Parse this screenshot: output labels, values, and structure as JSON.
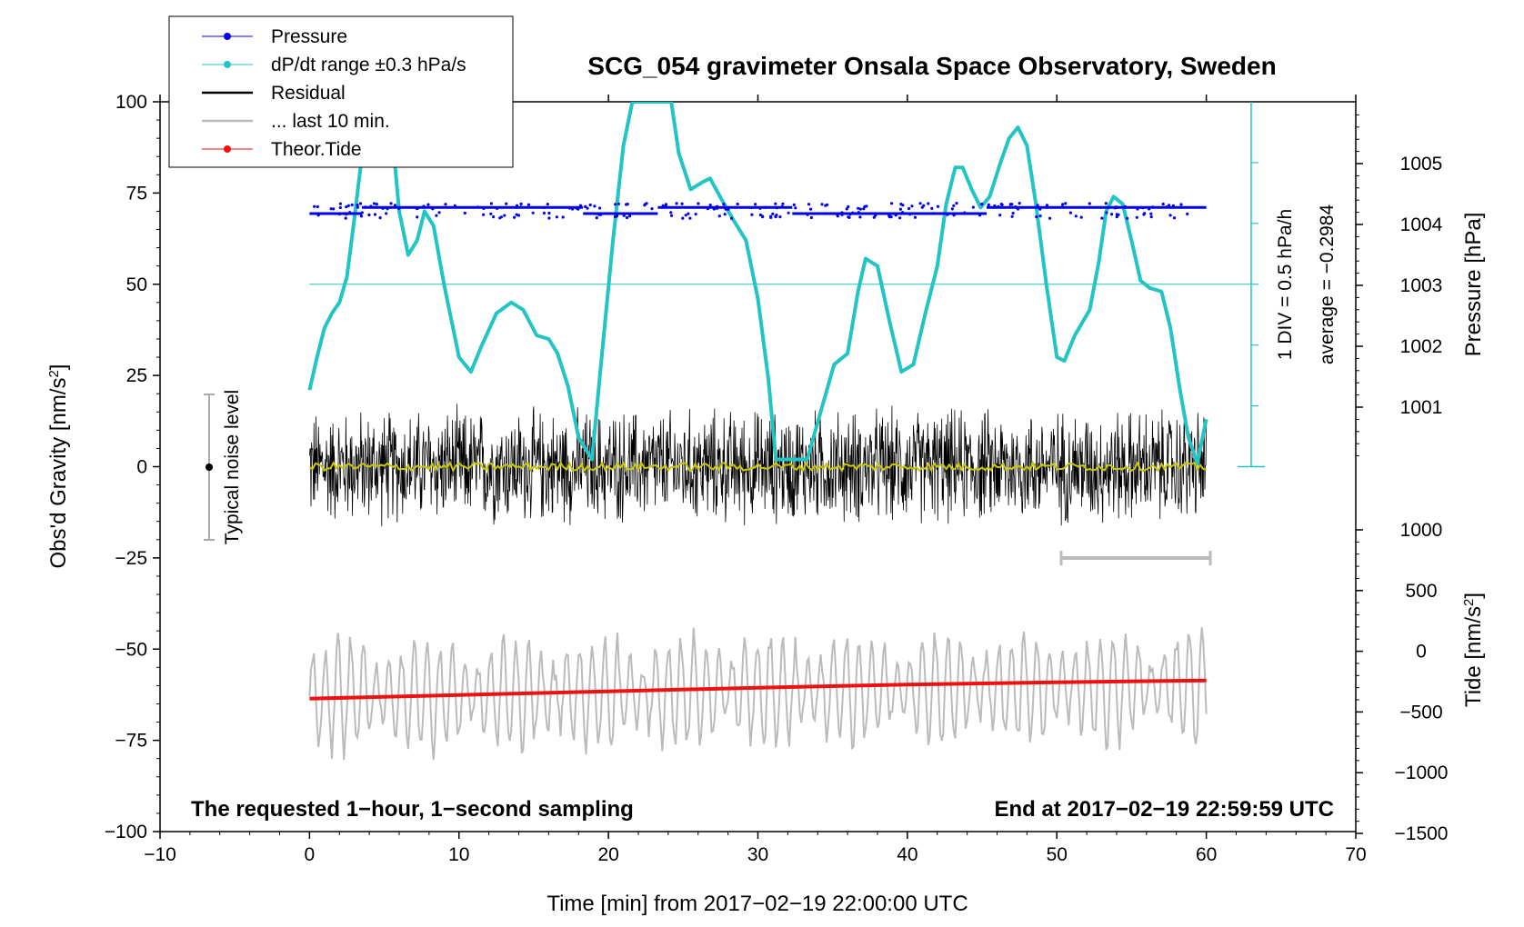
{
  "chart_data": {
    "type": "line",
    "title": "SCG_054 gravimeter Onsala Space Observatory, Sweden",
    "xlabel": "Time [min] from 2017−02−19 22:00:00 UTC",
    "xlim": [
      -10,
      70
    ],
    "xticks": [
      "−10",
      "0",
      "10",
      "20",
      "30",
      "40",
      "50",
      "60",
      "70"
    ],
    "y_left": {
      "label": "Obs'd Gravity [nm/s",
      "label_sup": "2",
      "label_end": "]",
      "lim": [
        -100,
        100
      ],
      "ticks": [
        "100",
        "75",
        "50",
        "25",
        "0",
        "−25",
        "−50",
        "−75",
        "−100"
      ]
    },
    "y_right_pressure": {
      "label": "Pressure [hPa]",
      "ticks": [
        "1005",
        "1004",
        "1003",
        "1002",
        "1001"
      ],
      "tick_values": [
        1005,
        1004,
        1003,
        1002,
        1001
      ]
    },
    "y_right_tide": {
      "label": "Tide [nm/s",
      "label_sup": "2",
      "label_end": "]",
      "ticks": [
        "1000",
        "500",
        "0",
        "−500",
        "−1000",
        "−1500"
      ],
      "tick_values": [
        1000,
        500,
        0,
        -500,
        -1000,
        -1500
      ]
    },
    "dpdt_scale_note": "1 DIV = 0.5 hPa/h",
    "dpdt_average": "average = −0.2984",
    "noise_label": "Typical noise level",
    "noise_bar": {
      "center": 0,
      "half_range": 20,
      "x_min": -7
    },
    "last10_bar": {
      "x_start": 50,
      "x_end": 60,
      "y": -25
    },
    "legend": [
      {
        "label": "Pressure",
        "color": "#0000ee",
        "marker": true
      },
      {
        "label": "dP/dt range ±0.3 hPa/s",
        "color": "#22c4c4",
        "marker": true
      },
      {
        "label": "Residual",
        "color": "#000000",
        "marker": false
      },
      {
        "label": "... last 10 min.",
        "color": "#bbbbbb",
        "marker": false
      },
      {
        "label": "Theor.Tide",
        "color": "#ee1111",
        "marker": true
      }
    ],
    "annotations": {
      "bottom_left": "The requested 1−hour, 1−second sampling",
      "bottom_right": "End at 2017−02−19 22:59:59 UTC"
    },
    "series": [
      {
        "name": "dP/dt range",
        "color": "#22c4c4",
        "y_units": "gravity-axis",
        "x": [
          0,
          0.5,
          1,
          1.5,
          2,
          2.5,
          3,
          3.5,
          4,
          4.3,
          4.8,
          5.2,
          5.6,
          6,
          6.6,
          7.2,
          7.7,
          8.3,
          9,
          10,
          10.8,
          11.5,
          12.5,
          13.5,
          14.3,
          15.2,
          16,
          16.6,
          17.3,
          18,
          18.9,
          19.5,
          20.3,
          21,
          21.6,
          22.2,
          22.6,
          24.2,
          24.7,
          25.5,
          26.3,
          26.8,
          27.6,
          28.3,
          29.2,
          30,
          30.7,
          31.2,
          33.3,
          34.2,
          35.1,
          36,
          36.7,
          37.2,
          38,
          38.8,
          39.6,
          40.4,
          41.2,
          42,
          42.6,
          43.2,
          43.7,
          44.3,
          44.9,
          45.5,
          46.2,
          46.8,
          47.4,
          48,
          48.6,
          49.3,
          50,
          50.5,
          51.2,
          52.2,
          52.8,
          53.3,
          53.8,
          54.4,
          55,
          55.6,
          56.2,
          57,
          57.6,
          58.2,
          58.8,
          59.4,
          60
        ],
        "y": [
          21,
          30,
          38,
          42,
          45,
          52,
          68,
          85,
          100,
          100,
          100,
          100,
          88,
          70,
          58,
          62,
          70,
          66,
          50,
          30,
          26,
          33,
          42,
          45,
          43,
          36,
          35,
          31,
          22,
          8,
          2,
          28,
          62,
          88,
          100,
          100,
          100,
          100,
          86,
          76,
          78,
          79,
          73,
          68,
          62,
          46,
          24,
          2,
          2,
          15,
          28,
          31,
          48,
          57,
          55,
          40,
          26,
          28,
          42,
          55,
          72,
          82,
          82,
          76,
          71,
          74,
          83,
          90,
          93,
          88,
          72,
          50,
          30,
          29,
          36,
          43,
          56,
          70,
          74,
          72,
          62,
          51,
          49,
          48,
          38,
          22,
          8,
          1,
          13
        ]
      },
      {
        "name": "Pressure",
        "color": "#0000ee",
        "y_units": "hPa",
        "x": [
          0,
          3.5,
          18.3,
          23.3,
          32.3,
          45.3,
          60
        ],
        "y": [
          1004.2,
          1004.3,
          1004.2,
          1004.3,
          1004.2,
          1004.3,
          1004.3
        ]
      },
      {
        "name": "Theor.Tide",
        "color": "#ee1111",
        "y_units": "nm/s2",
        "x": [
          0,
          10,
          20,
          30,
          40,
          50,
          60
        ],
        "y": [
          -390,
          -360,
          -330,
          -300,
          -275,
          -255,
          -240
        ]
      },
      {
        "name": "Residual",
        "color": "#000000",
        "y_units": "gravity-axis",
        "x": [
          0,
          60
        ],
        "y": [
          0,
          0
        ],
        "noise_amplitude": 12
      },
      {
        "name": "... last 10 min.",
        "color": "#bbbbbb",
        "y_units": "gravity-axis",
        "x": [
          0,
          60
        ],
        "y": [
          -63,
          -60
        ],
        "oscillation_amplitude": 15
      }
    ]
  }
}
